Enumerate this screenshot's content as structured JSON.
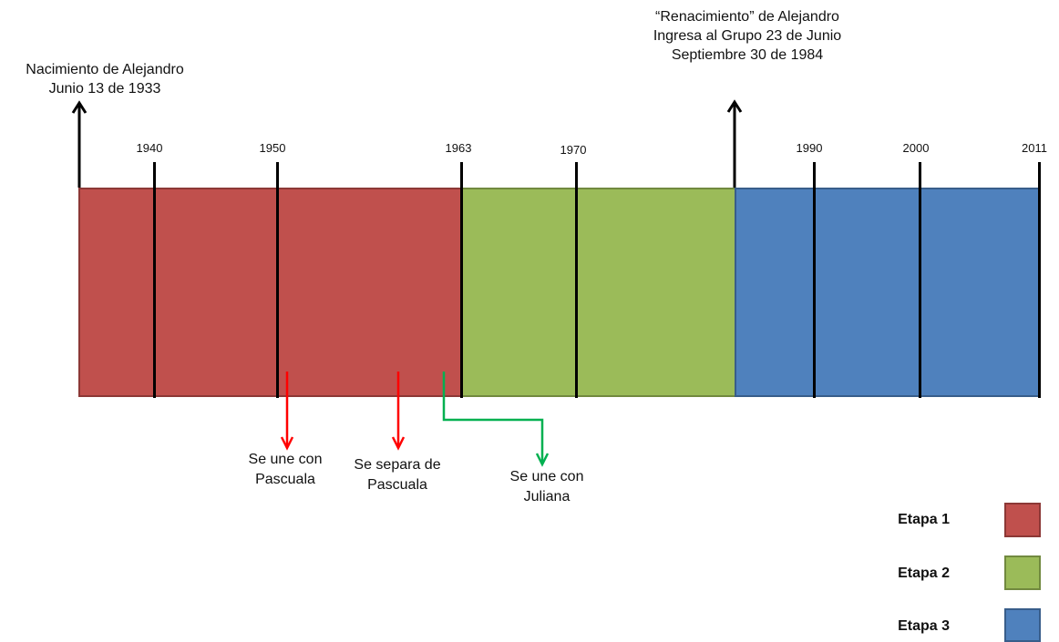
{
  "birth": {
    "line1": "Nacimiento de Alejandro",
    "line2": "Junio 13 de 1933"
  },
  "rebirth": {
    "line1": "“Renacimiento” de Alejandro",
    "line2": "Ingresa al Grupo 23 de Junio",
    "line3": "Septiembre 30 de 1984"
  },
  "years": [
    "1940",
    "1950",
    "1963",
    "1970",
    "1990",
    "2000",
    "2011"
  ],
  "events": [
    {
      "line1": "Se une con",
      "line2": "Pascuala"
    },
    {
      "line1": "Se  separa de",
      "line2": "Pascuala"
    },
    {
      "line1": "Se une con",
      "line2": "Juliana"
    }
  ],
  "legend": [
    {
      "label": "Etapa 1",
      "fill": "#c0504d",
      "border": "#8c3836"
    },
    {
      "label": "Etapa 2",
      "fill": "#9bbb59",
      "border": "#71893f"
    },
    {
      "label": "Etapa 3",
      "fill": "#4f81bd",
      "border": "#385d8a"
    }
  ],
  "colors": {
    "event_red": "#ff0000",
    "event_green": "#00b050"
  }
}
